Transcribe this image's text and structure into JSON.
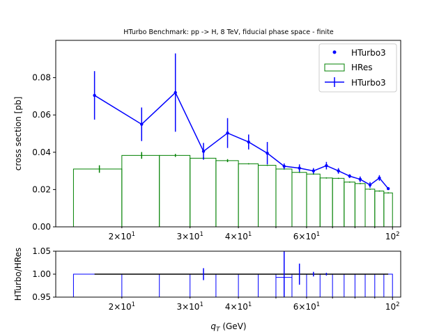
{
  "chart_data": [
    {
      "type": "line",
      "title": "HTurbo Benchmark: pp -> H, 8 TeV, fiducial phase space - finite",
      "xlabel": "",
      "ylabel": "cross section [pb]",
      "xscale": "log",
      "xlim": [
        13.5,
        105
      ],
      "ylim": [
        0,
        0.1
      ],
      "yticks": [
        "0.00",
        "0.02",
        "0.04",
        "0.06",
        "0.08"
      ],
      "xtick_labels": [
        {
          "v": 20,
          "base": "2",
          "mult": "×10",
          "exp": "1"
        },
        {
          "v": 30,
          "base": "3",
          "mult": "×10",
          "exp": "1"
        },
        {
          "v": 40,
          "base": "4",
          "mult": "×10",
          "exp": "1"
        },
        {
          "v": 60,
          "base": "6",
          "mult": "×10",
          "exp": "1"
        },
        {
          "v": 100,
          "base": "10",
          "mult": "",
          "exp": "2"
        }
      ],
      "legend": {
        "position": "upper right",
        "entries": [
          "HTurbo3",
          "HRes",
          "HTurbo3"
        ]
      },
      "series": [
        {
          "name": "HTurbo3",
          "style": "line-errorbar",
          "color": "#0000ff",
          "points": [
            {
              "x": 17,
              "y": 0.0705,
              "err": 0.013
            },
            {
              "x": 22.5,
              "y": 0.055,
              "err": 0.009
            },
            {
              "x": 27.5,
              "y": 0.072,
              "err": 0.021
            },
            {
              "x": 32.5,
              "y": 0.0405,
              "err": 0.0045
            },
            {
              "x": 37.5,
              "y": 0.0503,
              "err": 0.008
            },
            {
              "x": 42.5,
              "y": 0.0455,
              "err": 0.004
            },
            {
              "x": 47.5,
              "y": 0.0395,
              "err": 0.006
            },
            {
              "x": 52.5,
              "y": 0.0325,
              "err": 0.0015
            },
            {
              "x": 57.5,
              "y": 0.0315,
              "err": 0.002
            },
            {
              "x": 62.5,
              "y": 0.03,
              "err": 0.0015
            },
            {
              "x": 67.5,
              "y": 0.0328,
              "err": 0.002
            },
            {
              "x": 72.5,
              "y": 0.03,
              "err": 0.0015
            },
            {
              "x": 77.5,
              "y": 0.0272,
              "err": 0.001
            },
            {
              "x": 82.5,
              "y": 0.0255,
              "err": 0.0015
            },
            {
              "x": 87.5,
              "y": 0.0225,
              "err": 0.0015
            },
            {
              "x": 92.5,
              "y": 0.0262,
              "err": 0.0015
            },
            {
              "x": 97.5,
              "y": 0.0205,
              "err": 0.0005
            }
          ]
        },
        {
          "name": "HRes",
          "style": "step-histogram",
          "color": "#008000",
          "bins": [
            {
              "lo": 15,
              "hi": 20,
              "y": 0.031,
              "err": 0.002
            },
            {
              "lo": 20,
              "hi": 25,
              "y": 0.0383,
              "err": 0.0018
            },
            {
              "lo": 25,
              "hi": 30,
              "y": 0.0383,
              "err": 0.0008
            },
            {
              "lo": 30,
              "hi": 35,
              "y": 0.0368,
              "err": 0.0005
            },
            {
              "lo": 35,
              "hi": 40,
              "y": 0.0355,
              "err": 0.0008
            },
            {
              "lo": 40,
              "hi": 45,
              "y": 0.0338,
              "err": 0.0003
            },
            {
              "lo": 45,
              "hi": 50,
              "y": 0.033,
              "err": 0.0003
            },
            {
              "lo": 50,
              "hi": 55,
              "y": 0.031,
              "err": 0.0003
            },
            {
              "lo": 55,
              "hi": 60,
              "y": 0.0292,
              "err": 0.0003
            },
            {
              "lo": 60,
              "hi": 65,
              "y": 0.0283,
              "err": 0.0003
            },
            {
              "lo": 65,
              "hi": 70,
              "y": 0.0262,
              "err": 0.0003
            },
            {
              "lo": 70,
              "hi": 75,
              "y": 0.026,
              "err": 0.0003
            },
            {
              "lo": 75,
              "hi": 80,
              "y": 0.024,
              "err": 0.0003
            },
            {
              "lo": 80,
              "hi": 85,
              "y": 0.0232,
              "err": 0.0003
            },
            {
              "lo": 85,
              "hi": 90,
              "y": 0.0202,
              "err": 0.0003
            },
            {
              "lo": 90,
              "hi": 95,
              "y": 0.0192,
              "err": 0.0003
            },
            {
              "lo": 95,
              "hi": 100,
              "y": 0.0182,
              "err": 0.0003
            }
          ]
        }
      ]
    },
    {
      "type": "line",
      "title": "",
      "xlabel": "q_T (GeV)",
      "ylabel": "HTurbo/HRes",
      "xscale": "log",
      "xlim": [
        13.5,
        105
      ],
      "ylim": [
        0.95,
        1.05
      ],
      "yticks": [
        "0.95",
        "1.00",
        "1.05"
      ],
      "series": [
        {
          "name": "",
          "style": "step",
          "color": "#0000ff",
          "edges": [
            15,
            20,
            25,
            30,
            35,
            40,
            45,
            50,
            55,
            60,
            65,
            70,
            75,
            80,
            85,
            90,
            95,
            100
          ],
          "values": [
            1.0,
            1.0,
            1.0,
            1.0,
            1.0,
            1.0,
            1.0,
            0.993,
            1.0,
            1.0,
            1.0,
            1.0,
            1.0,
            1.0,
            1.0,
            1.0,
            1.0
          ]
        },
        {
          "name": "",
          "style": "line-errorbar",
          "color": "#000000",
          "points": [
            {
              "x": 17,
              "y": 1.0,
              "err": 0
            },
            {
              "x": 22.5,
              "y": 1.0,
              "err": 0
            },
            {
              "x": 27.5,
              "y": 1.0,
              "err": 0
            },
            {
              "x": 32.5,
              "y": 1.0,
              "err": 0.013
            },
            {
              "x": 37.5,
              "y": 1.0,
              "err": 0
            },
            {
              "x": 42.5,
              "y": 1.0,
              "err": 0
            },
            {
              "x": 47.5,
              "y": 1.0,
              "err": 0
            },
            {
              "x": 52.5,
              "y": 1.0,
              "err": 0.05
            },
            {
              "x": 57.5,
              "y": 1.0,
              "err": 0.023
            },
            {
              "x": 62.5,
              "y": 1.0,
              "err": 0.005
            },
            {
              "x": 67.5,
              "y": 1.0,
              "err": 0.003
            },
            {
              "x": 72.5,
              "y": 1.0,
              "err": 0
            },
            {
              "x": 77.5,
              "y": 1.0,
              "err": 0
            },
            {
              "x": 82.5,
              "y": 1.0,
              "err": 0
            },
            {
              "x": 87.5,
              "y": 1.0,
              "err": 0
            },
            {
              "x": 92.5,
              "y": 1.0,
              "err": 0
            },
            {
              "x": 97.5,
              "y": 1.0,
              "err": 0
            }
          ]
        }
      ]
    }
  ]
}
